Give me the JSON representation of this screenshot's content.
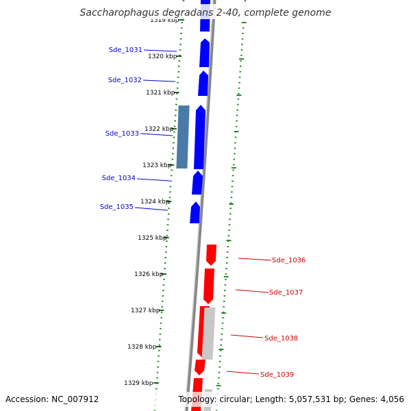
{
  "title": "Saccharophagus degradans 2-40, complete genome",
  "footer": {
    "accession": "Accession: NC_007912",
    "topology": "Topology: circular; Length: 5,057,531 bp; Genes: 4,056"
  },
  "colors": {
    "forward": "#0000ff",
    "reverse": "#ff0000",
    "forward_label": "#0000cc",
    "reverse_label": "#cc0000",
    "other_forward": "#4a7aa8",
    "other_reverse": "#c8c8c8",
    "backbone": "#888888",
    "gc_dots": "#2e8b2e",
    "kbp_ticks": "#1a6a1a"
  },
  "kbp_labels": [
    "1319 kbp",
    "1320 kbp",
    "1321 kbp",
    "1322 kbp",
    "1323 kbp",
    "1324 kbp",
    "1325 kbp",
    "1326 kbp",
    "1327 kbp",
    "1328 kbp",
    "1329 kbp"
  ],
  "gene_labels": [
    {
      "text": "Sde_1031",
      "strand": "forward"
    },
    {
      "text": "Sde_1032",
      "strand": "forward"
    },
    {
      "text": "Sde_1033",
      "strand": "forward"
    },
    {
      "text": "Sde_1034",
      "strand": "forward"
    },
    {
      "text": "Sde_1035",
      "strand": "forward"
    },
    {
      "text": "Sde_1036",
      "strand": "reverse"
    },
    {
      "text": "Sde_1037",
      "strand": "reverse"
    },
    {
      "text": "Sde_1038",
      "strand": "reverse"
    },
    {
      "text": "Sde_1039",
      "strand": "reverse"
    }
  ]
}
